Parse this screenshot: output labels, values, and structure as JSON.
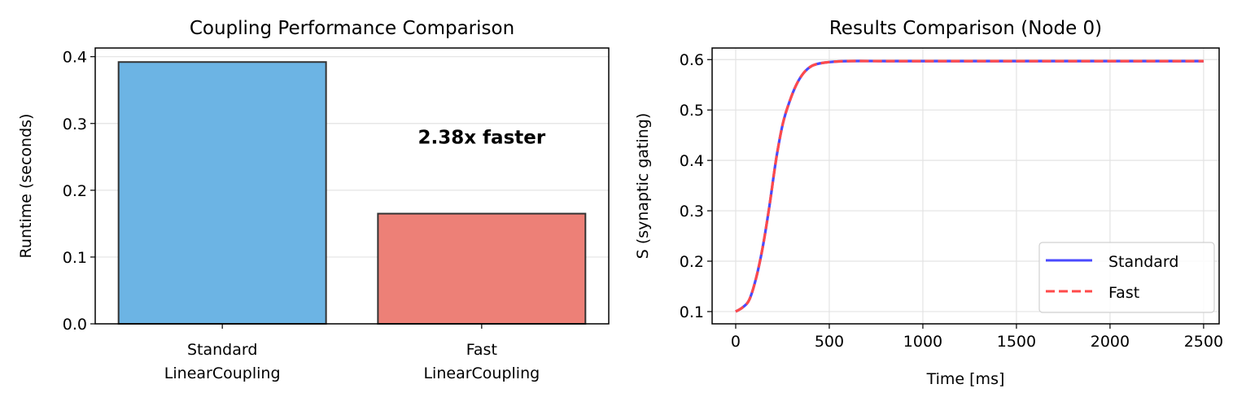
{
  "chart_data": [
    {
      "type": "bar",
      "title": "Coupling Performance Comparison",
      "xlabel": "",
      "ylabel": "Runtime (seconds)",
      "categories": [
        [
          "Standard",
          "LinearCoupling"
        ],
        [
          "Fast",
          "LinearCoupling"
        ]
      ],
      "values": [
        0.392,
        0.165
      ],
      "colors": [
        "#6cb4e4",
        "#ed8077"
      ],
      "edge_color": "#333333",
      "ylim": [
        0,
        0.413
      ],
      "xlim": [
        -0.49,
        1.49
      ],
      "yticks": [
        0.0,
        0.1,
        0.2,
        0.3,
        0.4
      ],
      "ytick_labels": [
        "0.0",
        "0.1",
        "0.2",
        "0.3",
        "0.4"
      ],
      "grid": "y",
      "annotation": {
        "text": "2.38x faster",
        "x": 1,
        "y": 0.27
      }
    },
    {
      "type": "line",
      "title": "Results Comparison (Node 0)",
      "xlabel": "Time [ms]",
      "ylabel": "S (synaptic gating)",
      "xlim": [
        -126,
        2583
      ],
      "ylim": [
        0.0757,
        0.623
      ],
      "xticks": [
        0,
        500,
        1000,
        1500,
        2000,
        2500
      ],
      "yticks": [
        0.1,
        0.2,
        0.3,
        0.4,
        0.5,
        0.6
      ],
      "ytick_labels": [
        "0.1",
        "0.2",
        "0.3",
        "0.4",
        "0.5",
        "0.6"
      ],
      "grid": "both",
      "legend_position": "lower-right",
      "x": [
        0,
        36,
        72,
        108,
        144,
        180,
        216,
        252,
        288,
        324,
        360,
        396,
        432,
        500,
        600,
        800,
        1000,
        1500,
        2000,
        2500
      ],
      "series": [
        {
          "name": "Standard",
          "color": "#4a4aff",
          "style": "solid",
          "values": [
            0.1,
            0.108,
            0.123,
            0.165,
            0.227,
            0.309,
            0.402,
            0.473,
            0.517,
            0.55,
            0.572,
            0.585,
            0.591,
            0.595,
            0.597,
            0.597,
            0.597,
            0.597,
            0.597,
            0.597
          ]
        },
        {
          "name": "Fast",
          "color": "#ff4a4a",
          "style": "dashed",
          "values": [
            0.1,
            0.108,
            0.123,
            0.165,
            0.227,
            0.309,
            0.402,
            0.473,
            0.517,
            0.55,
            0.572,
            0.585,
            0.591,
            0.595,
            0.597,
            0.597,
            0.597,
            0.597,
            0.597,
            0.597
          ]
        }
      ]
    }
  ]
}
